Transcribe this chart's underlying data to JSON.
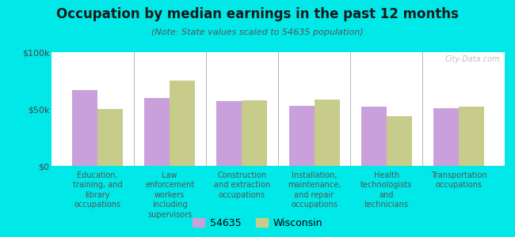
{
  "title": "Occupation by median earnings in the past 12 months",
  "subtitle": "(Note: State values scaled to 54635 population)",
  "background_color": "#00e8e8",
  "categories": [
    "Education,\ntraining, and\nlibrary\noccupations",
    "Law\nenforcement\nworkers\nincluding\nsupervisors",
    "Construction\nand extraction\noccupations",
    "Installation,\nmaintenance,\nand repair\noccupations",
    "Health\ntechnologists\nand\ntechnicians",
    "Transportation\noccupations"
  ],
  "values_54635": [
    67000,
    60000,
    57000,
    53000,
    52000,
    51000
  ],
  "values_wisconsin": [
    50000,
    75000,
    57500,
    58000,
    44000,
    52000
  ],
  "color_54635": "#c9a0dc",
  "color_wisconsin": "#c8cc8a",
  "ylim": [
    0,
    100000
  ],
  "yticks": [
    0,
    50000,
    100000
  ],
  "ytick_labels": [
    "$0",
    "$50k",
    "$100k"
  ],
  "legend_label_1": "54635",
  "legend_label_2": "Wisconsin",
  "watermark": "City-Data.com",
  "bar_width": 0.35
}
